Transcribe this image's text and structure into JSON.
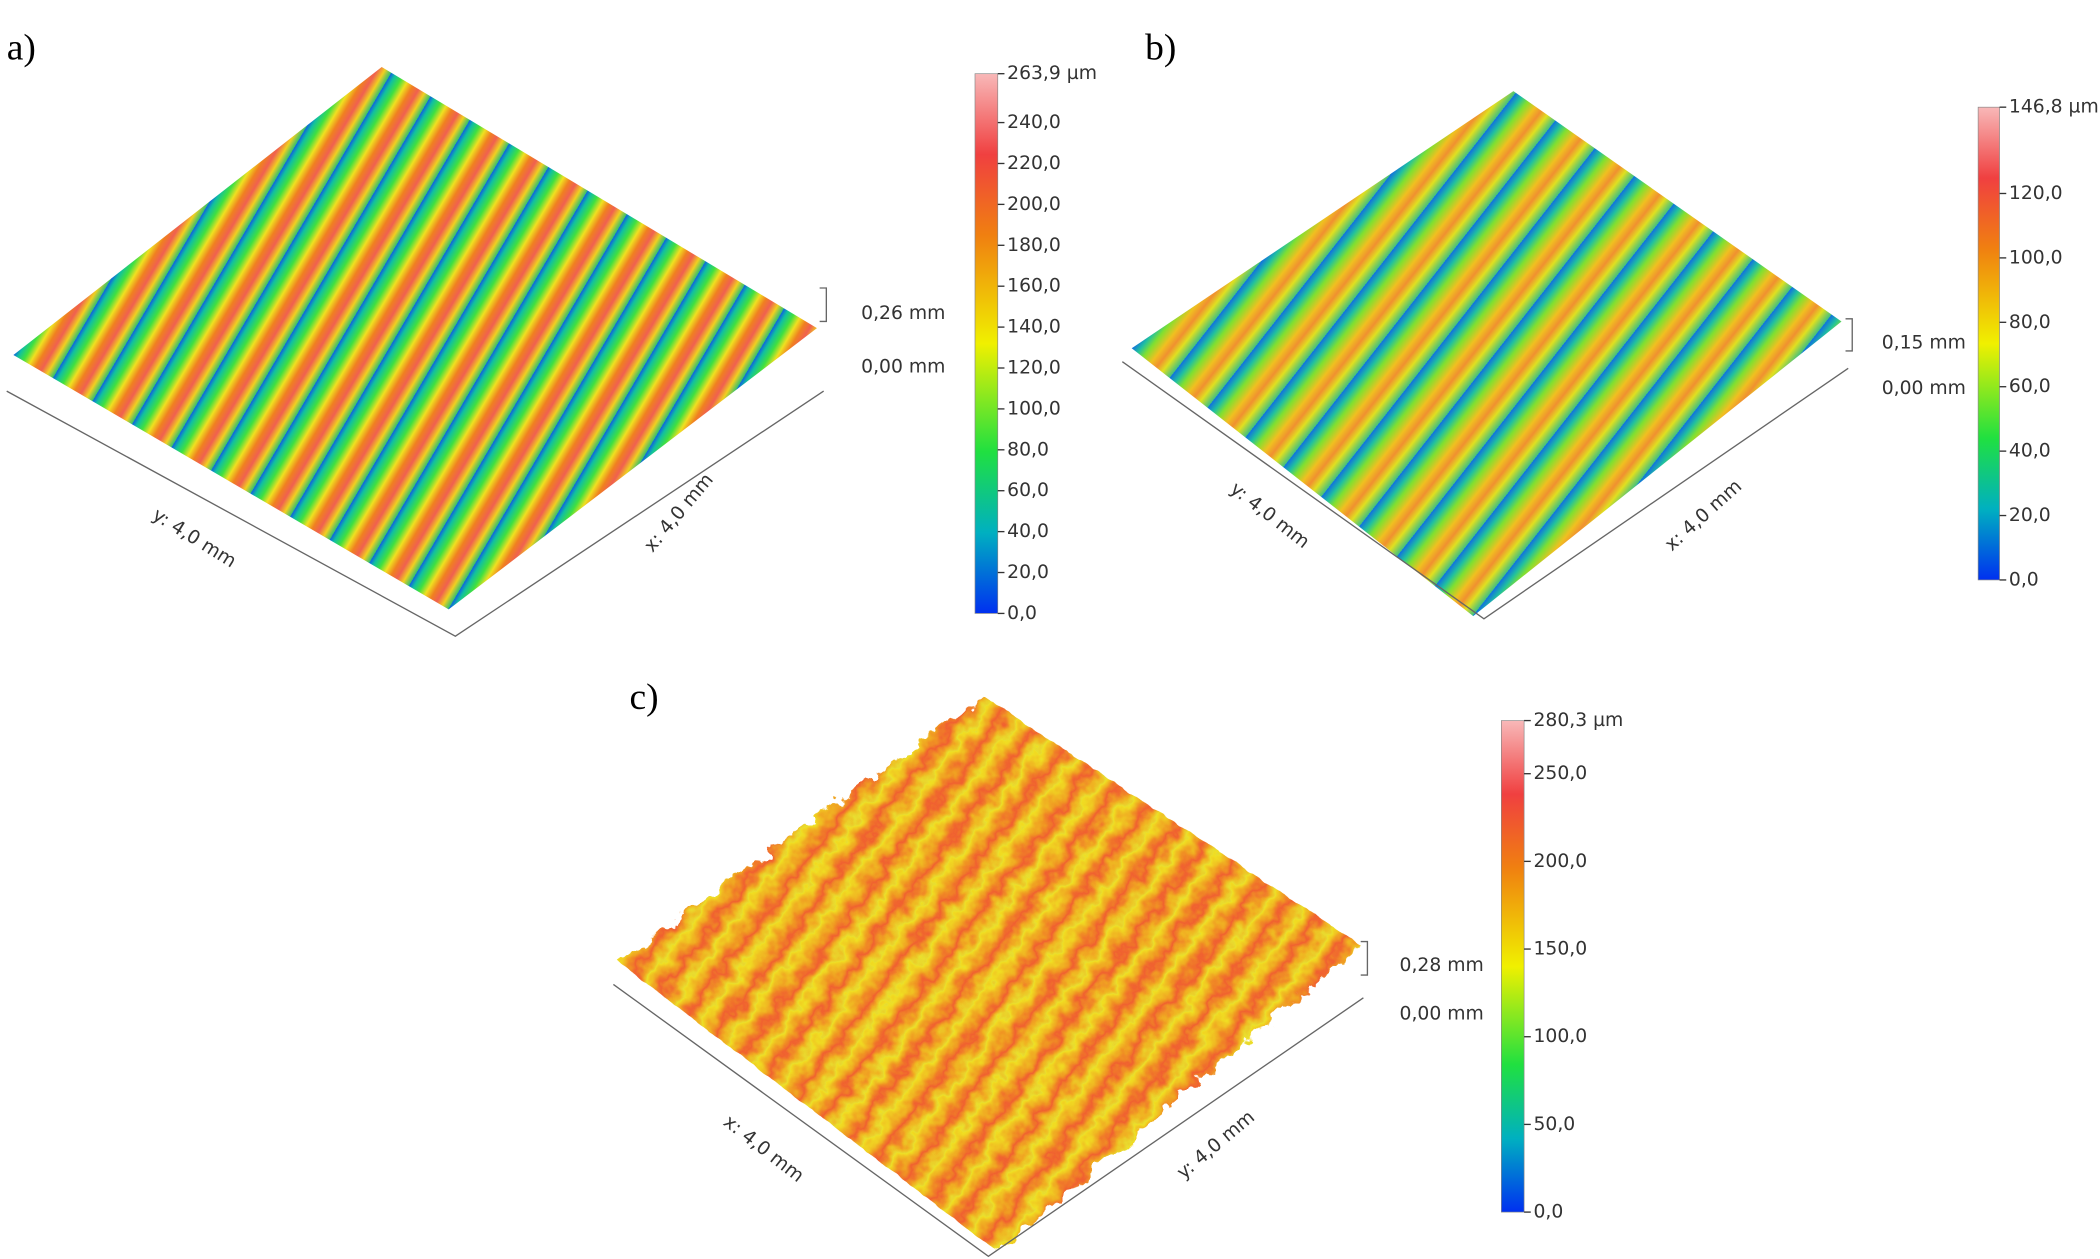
{
  "panels": [
    {
      "label": "a)",
      "x_axis": "x: 4,0 mm",
      "y_axis": "y: 4,0 mm",
      "z_axis": [
        "0,26 mm",
        "0,00 mm"
      ],
      "colorbar": {
        "lim": [
          0,
          263.9
        ],
        "ticks": [
          {
            "value": 0,
            "label": "0,0"
          },
          {
            "value": 20,
            "label": "20,0"
          },
          {
            "value": 40,
            "label": "40,0"
          },
          {
            "value": 60,
            "label": "60,0"
          },
          {
            "value": 80,
            "label": "80,0"
          },
          {
            "value": 100,
            "label": "100,0"
          },
          {
            "value": 120,
            "label": "120,0"
          },
          {
            "value": 140,
            "label": "140,0"
          },
          {
            "value": 160,
            "label": "160,0"
          },
          {
            "value": 180,
            "label": "180,0"
          },
          {
            "value": 200,
            "label": "200,0"
          },
          {
            "value": 220,
            "label": "220,0"
          },
          {
            "value": 240,
            "label": "240,0"
          },
          {
            "value": 263.9,
            "label": "263,9 µm"
          }
        ]
      }
    },
    {
      "label": "b)",
      "x_axis": "x: 4,0 mm",
      "y_axis": "y: 4,0 mm",
      "z_axis": [
        "0,15 mm",
        "0,00 mm"
      ],
      "colorbar": {
        "lim": [
          0,
          146.8
        ],
        "ticks": [
          {
            "value": 0,
            "label": "0,0"
          },
          {
            "value": 20,
            "label": "20,0"
          },
          {
            "value": 40,
            "label": "40,0"
          },
          {
            "value": 60,
            "label": "60,0"
          },
          {
            "value": 80,
            "label": "80,0"
          },
          {
            "value": 100,
            "label": "100,0"
          },
          {
            "value": 120,
            "label": "120,0"
          },
          {
            "value": 146.8,
            "label": "146,8 µm"
          }
        ]
      }
    },
    {
      "label": "c)",
      "x_axis": "x: 4,0 mm",
      "y_axis": "y: 4,0 mm",
      "z_axis": [
        "0,28 mm",
        "0,00 mm"
      ],
      "colorbar": {
        "lim": [
          0,
          280.3
        ],
        "ticks": [
          {
            "value": 0,
            "label": "0,0"
          },
          {
            "value": 50,
            "label": "50,0"
          },
          {
            "value": 100,
            "label": "100,0"
          },
          {
            "value": 150,
            "label": "150,0"
          },
          {
            "value": 200,
            "label": "200,0"
          },
          {
            "value": 250,
            "label": "250,0"
          },
          {
            "value": 280.3,
            "label": "280,3 µm"
          }
        ]
      }
    }
  ]
}
